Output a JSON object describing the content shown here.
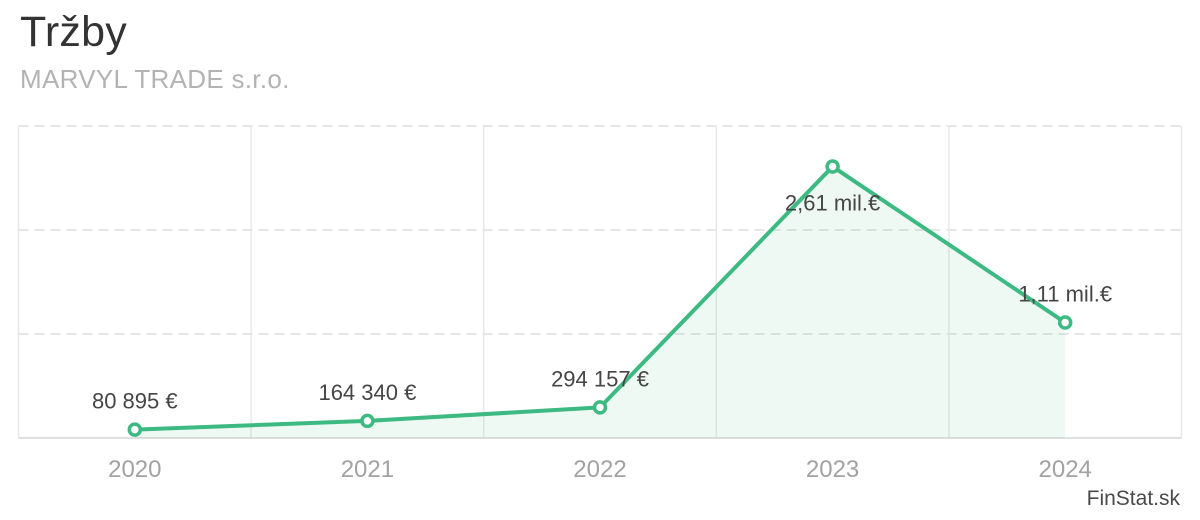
{
  "header": {
    "title": "Tržby",
    "subtitle": "MARVYL TRADE s.r.o."
  },
  "watermark": {
    "label": "FinStat.sk"
  },
  "chart_data": {
    "type": "area",
    "title": "Tržby",
    "categories": [
      "2020",
      "2021",
      "2022",
      "2023",
      "2024"
    ],
    "values": [
      80895,
      164340,
      294157,
      2610000,
      1110000
    ],
    "point_labels": [
      "80 895 €",
      "164 340 €",
      "294 157 €",
      "2,61 mil.€",
      "1,11 mil.€"
    ],
    "label_placement": [
      "above",
      "above",
      "above",
      "below",
      "above"
    ],
    "xlabel": "",
    "ylabel": "",
    "ylim": [
      0,
      3000000
    ],
    "gridline_values": [
      1000000,
      2000000,
      3000000
    ],
    "grid": {
      "horizontal": "dashed",
      "vertical": "solid",
      "legend": "none"
    },
    "colors": {
      "line": "#3dba81",
      "area_fill": "rgba(61,186,129,0.09)",
      "marker_fill": "#ffffff",
      "grid_dashed": "#dedede",
      "grid_solid": "#e8e8e8",
      "axis_line": "#e0e0e0",
      "point_label": "#454545",
      "tick_label": "#a2a2a2"
    }
  }
}
